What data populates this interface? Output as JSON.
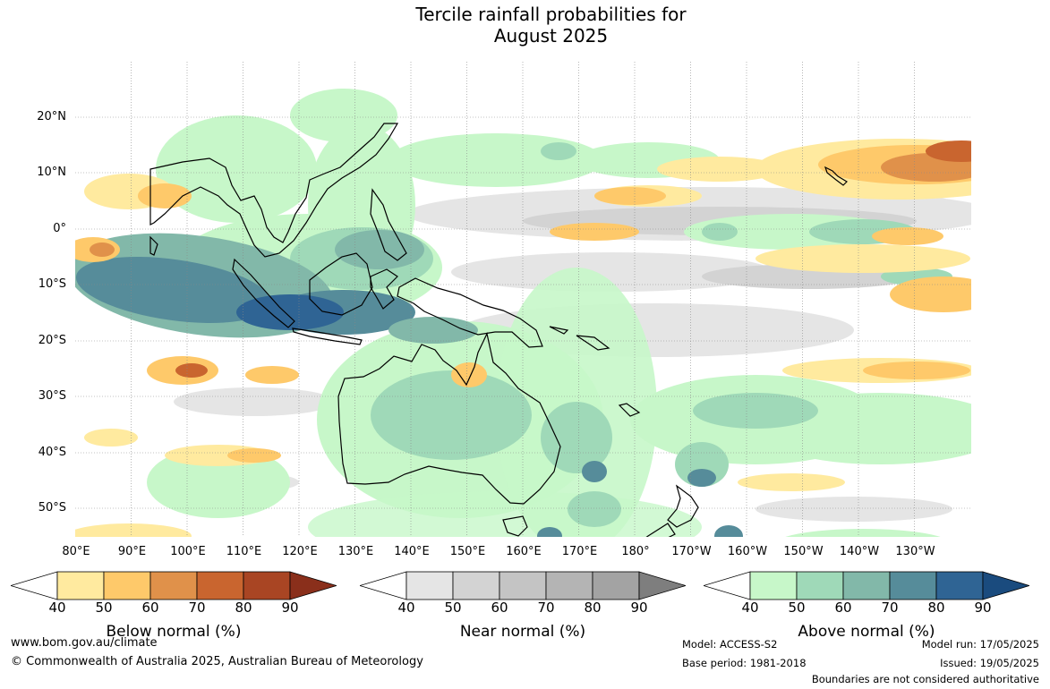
{
  "title": {
    "line1": "Tercile rainfall probabilities for",
    "line2": "August 2025"
  },
  "map": {
    "lat_labels": [
      "20°N",
      "10°N",
      "0°",
      "10°S",
      "20°S",
      "30°S",
      "40°S",
      "50°S"
    ],
    "lon_labels": [
      "80°E",
      "90°E",
      "100°E",
      "110°E",
      "120°E",
      "130°E",
      "140°E",
      "150°E",
      "160°E",
      "170°E",
      "180°",
      "170°W",
      "160°W",
      "150°W",
      "140°W",
      "130°W"
    ],
    "ocean_color": "#ffffff",
    "coast_color": "#000000",
    "grid": "dotted"
  },
  "legends": [
    {
      "title": "Below normal (%)",
      "ticks": [
        "40",
        "50",
        "60",
        "70",
        "80",
        "90"
      ],
      "colors": [
        "#ffffff",
        "#ffea9f",
        "#fec96a",
        "#e0914a",
        "#c9652f",
        "#a94523",
        "#8a2f1b"
      ]
    },
    {
      "title": "Near normal (%)",
      "ticks": [
        "40",
        "50",
        "60",
        "70",
        "80",
        "90"
      ],
      "colors": [
        "#ffffff",
        "#e5e5e5",
        "#d3d3d3",
        "#c4c4c4",
        "#b4b4b4",
        "#a3a3a3",
        "#7e7e7e"
      ]
    },
    {
      "title": "Above normal (%)",
      "ticks": [
        "40",
        "50",
        "60",
        "70",
        "80",
        "90"
      ],
      "colors": [
        "#ffffff",
        "#c7f7c9",
        "#9fd9b8",
        "#82b8a9",
        "#568c9a",
        "#2f6494",
        "#1a4b7e"
      ]
    }
  ],
  "footer": {
    "url": "www.bom.gov.au/climate",
    "copyright": "© Commonwealth of Australia 2025, Australian Bureau of Meteorology",
    "model": "Model: ACCESS-S2",
    "base_period": "Base period: 1981-2018",
    "model_run": "Model run: 17/05/2025",
    "issued": "Issued: 19/05/2025",
    "disclaimer": "Boundaries are not considered authoritative"
  }
}
